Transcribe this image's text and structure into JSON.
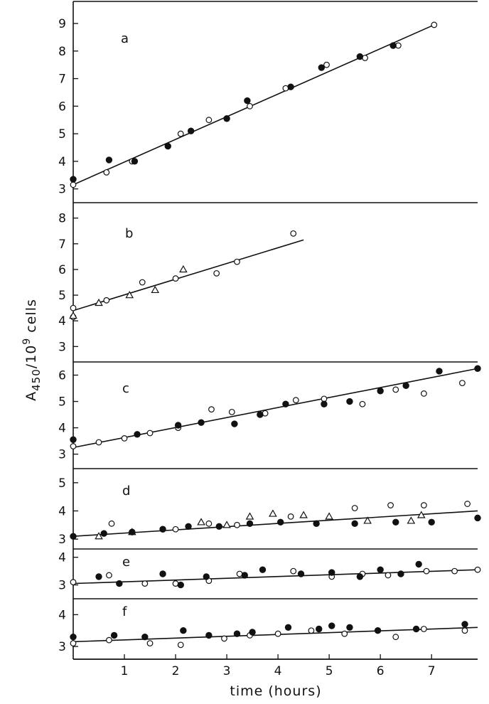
{
  "chart_data": {
    "type": "scatter",
    "xlabel": "time (hours)",
    "ylabel_main": "A",
    "ylabel_sub": "450",
    "ylabel_mid": "/10",
    "ylabel_sup": "9",
    "ylabel_end": " cells",
    "x_ticks": [
      1,
      2,
      3,
      4,
      5,
      6,
      7
    ],
    "xlim": [
      0,
      7.9
    ],
    "panels": [
      {
        "label": "a",
        "ylim": [
          2.5,
          9.8
        ],
        "yticks": [
          3,
          4,
          5,
          6,
          7,
          8,
          9
        ],
        "fit": [
          [
            0,
            3.15
          ],
          [
            7.05,
            8.95
          ]
        ],
        "filled": [
          [
            0,
            3.35
          ],
          [
            0.7,
            4.05
          ],
          [
            1.2,
            4.0
          ],
          [
            1.85,
            4.55
          ],
          [
            2.3,
            5.1
          ],
          [
            3.0,
            5.55
          ],
          [
            3.4,
            6.2
          ],
          [
            4.25,
            6.7
          ],
          [
            4.85,
            7.4
          ],
          [
            5.6,
            7.8
          ],
          [
            6.25,
            8.2
          ]
        ],
        "open": [
          [
            0,
            3.15
          ],
          [
            0.65,
            3.6
          ],
          [
            1.15,
            4.0
          ],
          [
            2.1,
            5.0
          ],
          [
            2.65,
            5.5
          ],
          [
            3.45,
            6.0
          ],
          [
            4.15,
            6.65
          ],
          [
            4.95,
            7.5
          ],
          [
            5.7,
            7.75
          ],
          [
            6.35,
            8.2
          ],
          [
            7.05,
            8.95
          ]
        ],
        "triangles": []
      },
      {
        "label": "b",
        "ylim": [
          2.4,
          8.6
        ],
        "yticks": [
          3,
          4,
          5,
          6,
          7,
          8
        ],
        "fit": [
          [
            0,
            4.4
          ],
          [
            4.5,
            7.15
          ]
        ],
        "filled": [],
        "open": [
          [
            0,
            4.5
          ],
          [
            0,
            4.15
          ],
          [
            0.65,
            4.8
          ],
          [
            1.35,
            5.5
          ],
          [
            2.0,
            5.65
          ],
          [
            2.8,
            5.85
          ],
          [
            3.2,
            6.3
          ],
          [
            4.3,
            7.4
          ]
        ],
        "triangles": [
          [
            0,
            4.2
          ],
          [
            0.5,
            4.7
          ],
          [
            1.1,
            5.0
          ],
          [
            1.6,
            5.2
          ],
          [
            2.15,
            6.0
          ]
        ]
      },
      {
        "label": "c",
        "ylim": [
          2.45,
          6.5
        ],
        "yticks": [
          3,
          4,
          5,
          6
        ],
        "fit": [
          [
            0,
            3.25
          ],
          [
            7.9,
            6.25
          ]
        ],
        "filled": [
          [
            0,
            3.55
          ],
          [
            1.25,
            3.75
          ],
          [
            2.05,
            4.1
          ],
          [
            2.5,
            4.2
          ],
          [
            3.15,
            4.15
          ],
          [
            3.65,
            4.5
          ],
          [
            4.15,
            4.9
          ],
          [
            4.9,
            4.9
          ],
          [
            5.4,
            5.0
          ],
          [
            6.0,
            5.4
          ],
          [
            6.5,
            5.6
          ],
          [
            7.15,
            6.15
          ],
          [
            7.9,
            6.25
          ]
        ],
        "open": [
          [
            0,
            3.3
          ],
          [
            0.5,
            3.45
          ],
          [
            1.0,
            3.6
          ],
          [
            1.5,
            3.8
          ],
          [
            2.05,
            4.0
          ],
          [
            2.7,
            4.7
          ],
          [
            3.1,
            4.6
          ],
          [
            3.75,
            4.55
          ],
          [
            4.35,
            5.05
          ],
          [
            4.9,
            5.1
          ],
          [
            5.65,
            4.9
          ],
          [
            6.3,
            5.45
          ],
          [
            6.85,
            5.3
          ],
          [
            7.6,
            5.7
          ]
        ],
        "triangles": []
      },
      {
        "label": "d",
        "ylim": [
          2.65,
          5.5
        ],
        "yticks": [
          3,
          4,
          5
        ],
        "fit": [
          [
            0,
            3.1
          ],
          [
            7.9,
            4.0
          ]
        ],
        "filled": [
          [
            0,
            3.1
          ],
          [
            0.6,
            3.2
          ],
          [
            1.15,
            3.25
          ],
          [
            1.75,
            3.35
          ],
          [
            2.25,
            3.45
          ],
          [
            2.85,
            3.45
          ],
          [
            3.45,
            3.55
          ],
          [
            4.05,
            3.6
          ],
          [
            4.75,
            3.55
          ],
          [
            5.5,
            3.55
          ],
          [
            6.3,
            3.6
          ],
          [
            7.0,
            3.6
          ],
          [
            7.9,
            3.75
          ]
        ],
        "open": [
          [
            0.75,
            3.55
          ],
          [
            2.0,
            3.35
          ],
          [
            2.65,
            3.55
          ],
          [
            3.2,
            3.5
          ],
          [
            4.25,
            3.8
          ],
          [
            5.5,
            4.1
          ],
          [
            6.2,
            4.2
          ],
          [
            6.85,
            4.2
          ],
          [
            7.7,
            4.25
          ]
        ],
        "triangles": [
          [
            0.5,
            3.1
          ],
          [
            1.15,
            3.25
          ],
          [
            2.5,
            3.6
          ],
          [
            3.0,
            3.5
          ],
          [
            3.45,
            3.8
          ],
          [
            3.9,
            3.9
          ],
          [
            4.5,
            3.85
          ],
          [
            5.0,
            3.8
          ],
          [
            5.75,
            3.65
          ],
          [
            6.6,
            3.65
          ],
          [
            6.8,
            3.85
          ]
        ]
      },
      {
        "label": "e",
        "ylim": [
          2.5,
          4.3
        ],
        "yticks": [
          3,
          4
        ],
        "fit": [
          [
            0,
            3.05
          ],
          [
            7.9,
            3.55
          ]
        ],
        "filled": [
          [
            0.5,
            3.3
          ],
          [
            0.9,
            3.05
          ],
          [
            1.75,
            3.4
          ],
          [
            2.1,
            3.0
          ],
          [
            2.6,
            3.3
          ],
          [
            3.35,
            3.35
          ],
          [
            3.7,
            3.55
          ],
          [
            4.45,
            3.4
          ],
          [
            5.05,
            3.45
          ],
          [
            5.6,
            3.3
          ],
          [
            6.0,
            3.55
          ],
          [
            6.4,
            3.4
          ],
          [
            6.75,
            3.75
          ]
        ],
        "open": [
          [
            0,
            3.1
          ],
          [
            0.7,
            3.35
          ],
          [
            1.4,
            3.05
          ],
          [
            2.0,
            3.05
          ],
          [
            2.65,
            3.15
          ],
          [
            3.25,
            3.4
          ],
          [
            4.3,
            3.5
          ],
          [
            5.05,
            3.3
          ],
          [
            5.65,
            3.4
          ],
          [
            6.15,
            3.35
          ],
          [
            6.9,
            3.5
          ],
          [
            7.45,
            3.5
          ],
          [
            7.9,
            3.55
          ]
        ],
        "triangles": []
      },
      {
        "label": "f",
        "ylim": [
          2.6,
          4.5
        ],
        "yticks": [
          3,
          4
        ],
        "fit": [
          [
            0,
            3.15
          ],
          [
            7.9,
            3.6
          ]
        ],
        "filled": [
          [
            0,
            3.3
          ],
          [
            0.8,
            3.35
          ],
          [
            1.4,
            3.3
          ],
          [
            2.15,
            3.5
          ],
          [
            2.65,
            3.35
          ],
          [
            3.2,
            3.4
          ],
          [
            3.5,
            3.45
          ],
          [
            4.2,
            3.6
          ],
          [
            4.8,
            3.55
          ],
          [
            5.05,
            3.65
          ],
          [
            5.4,
            3.6
          ],
          [
            5.95,
            3.5
          ],
          [
            6.7,
            3.55
          ],
          [
            7.65,
            3.7
          ]
        ],
        "open": [
          [
            0,
            3.1
          ],
          [
            0.7,
            3.2
          ],
          [
            1.5,
            3.1
          ],
          [
            2.1,
            3.05
          ],
          [
            2.95,
            3.25
          ],
          [
            3.45,
            3.35
          ],
          [
            4.0,
            3.4
          ],
          [
            4.65,
            3.5
          ],
          [
            5.3,
            3.4
          ],
          [
            6.3,
            3.3
          ],
          [
            6.85,
            3.55
          ],
          [
            7.65,
            3.5
          ]
        ],
        "triangles": []
      }
    ]
  }
}
